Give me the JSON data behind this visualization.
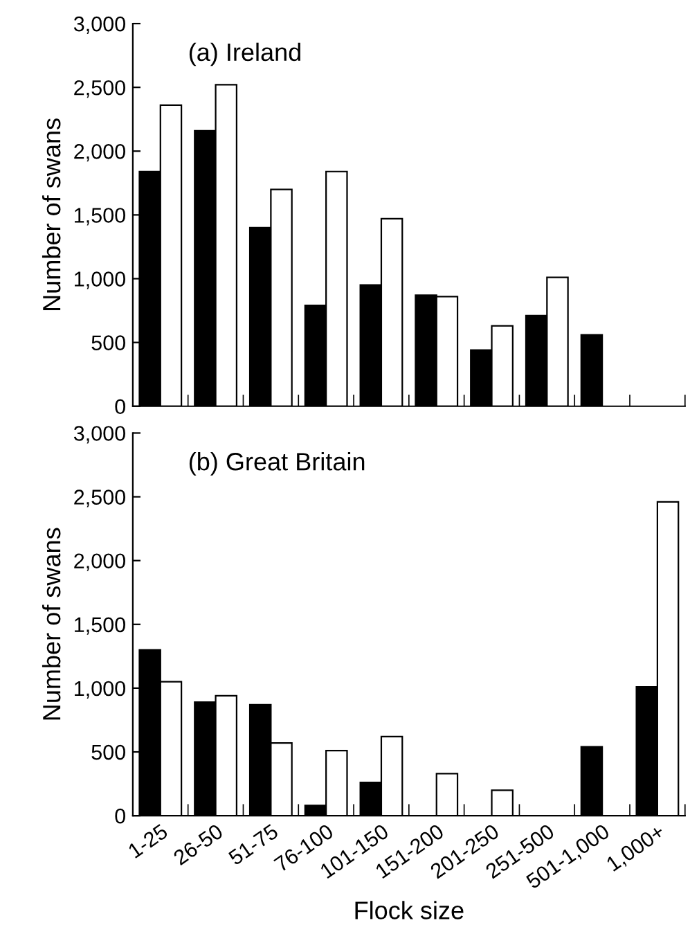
{
  "chart_data": [
    {
      "type": "bar",
      "title": "(a) Ireland",
      "ylabel": "Number of swans",
      "categories": [
        null,
        null,
        null,
        null,
        null,
        null,
        null,
        null,
        null,
        null
      ],
      "series": [
        {
          "color": "#000000",
          "values": [
            1840,
            2160,
            1400,
            790,
            950,
            870,
            440,
            710,
            560,
            0
          ]
        },
        {
          "color": "#ffffff",
          "values": [
            2360,
            2520,
            1700,
            1840,
            1470,
            860,
            630,
            1010,
            0,
            0
          ]
        }
      ],
      "ylim": [
        0,
        3000
      ],
      "yticks": [
        0,
        500,
        {
          "value": 1000,
          "label": "1,000"
        },
        {
          "value": 1500,
          "label": "1,500"
        },
        {
          "value": 2000,
          "label": "2,000"
        },
        {
          "value": 2500,
          "label": "2,500"
        },
        {
          "value": 3000,
          "label": "3,000"
        }
      ],
      "tick_labels": "y",
      "grid": false,
      "legend": false
    },
    {
      "type": "bar",
      "title": "(b) Great Britain",
      "ylabel": "Number of swans",
      "xlabel": "Flock size",
      "categories": [
        "1-25",
        "26-50",
        "51-75",
        "76-100",
        "101-150",
        "151-200",
        "201-250",
        "251-500",
        "501-1,000",
        "1,000+"
      ],
      "series": [
        {
          "color": "#000000",
          "values": [
            1300,
            890,
            870,
            80,
            260,
            0,
            0,
            0,
            540,
            1010
          ]
        },
        {
          "color": "#ffffff",
          "values": [
            1050,
            940,
            570,
            510,
            620,
            330,
            200,
            0,
            0,
            2460
          ]
        }
      ],
      "ylim": [
        0,
        3000
      ],
      "yticks": [
        0,
        500,
        {
          "value": 1000,
          "label": "1,000"
        },
        {
          "value": 1500,
          "label": "1,500"
        },
        {
          "value": 2000,
          "label": "2,000"
        },
        {
          "value": 2500,
          "label": "2,500"
        },
        {
          "value": 3000,
          "label": "3,000"
        }
      ],
      "grid": false,
      "legend": false
    }
  ]
}
